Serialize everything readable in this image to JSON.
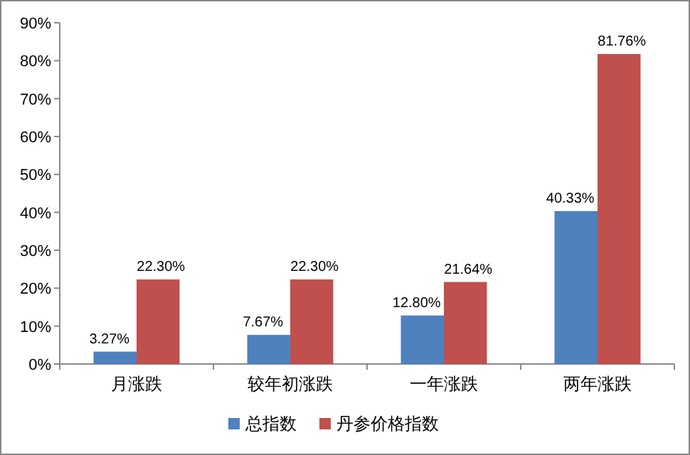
{
  "chart_data": {
    "type": "bar",
    "categories": [
      "月涨跌",
      "较年初涨跌",
      "一年涨跌",
      "两年涨跌"
    ],
    "series": [
      {
        "name": "总指数",
        "color": "#4f81bd",
        "values": [
          3.27,
          7.67,
          12.8,
          40.33
        ],
        "value_labels": [
          "3.27%",
          "7.67%",
          "12.80%",
          "40.33%"
        ]
      },
      {
        "name": "丹参价格指数",
        "color": "#c0504d",
        "values": [
          22.3,
          22.3,
          21.64,
          81.76
        ],
        "value_labels": [
          "22.30%",
          "22.30%",
          "21.64%",
          "81.76%"
        ]
      }
    ],
    "ylim": [
      0,
      90
    ],
    "yticks": [
      {
        "value": 0,
        "label": "0%"
      },
      {
        "value": 10,
        "label": "10%"
      },
      {
        "value": 20,
        "label": "20%"
      },
      {
        "value": 30,
        "label": "30%"
      },
      {
        "value": 40,
        "label": "40%"
      },
      {
        "value": 50,
        "label": "50%"
      },
      {
        "value": 60,
        "label": "60%"
      },
      {
        "value": 70,
        "label": "70%"
      },
      {
        "value": 80,
        "label": "80%"
      },
      {
        "value": 90,
        "label": "90%"
      }
    ],
    "legend": "bottom"
  }
}
